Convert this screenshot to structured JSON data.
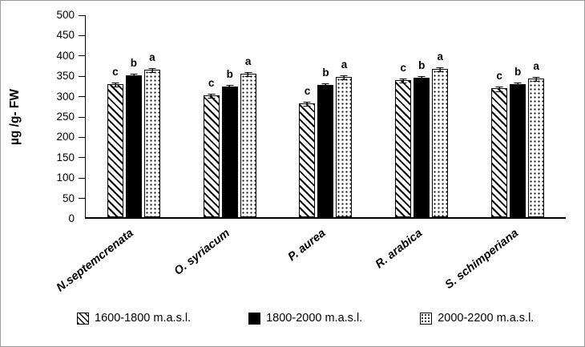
{
  "chart_data": {
    "type": "bar",
    "title": "",
    "ylabel": "µg /g- FW",
    "xlabel": "",
    "ylim": [
      0,
      500
    ],
    "ytick_step": 50,
    "grid": false,
    "legend_position": "bottom",
    "categories": [
      "N.septemcrenata",
      "O. syriacum",
      "P. aurea",
      "R. arabica",
      "S. schimperiana"
    ],
    "series": [
      {
        "name": "1600-1800 m.a.s.l.",
        "pattern": "hatch",
        "values": [
          327,
          300,
          280,
          336,
          316
        ],
        "errors": [
          6,
          6,
          6,
          6,
          6
        ],
        "letters": [
          "c",
          "c",
          "c",
          "c",
          "c"
        ]
      },
      {
        "name": "1800-2000 m.a.s.l.",
        "pattern": "solid",
        "values": [
          349,
          320,
          325,
          342,
          326
        ],
        "errors": [
          6,
          6,
          6,
          6,
          6
        ],
        "letters": [
          "b",
          "b",
          "b",
          "b",
          "b"
        ]
      },
      {
        "name": "2000-2200 m.a.s.l.",
        "pattern": "dots",
        "values": [
          362,
          352,
          345,
          365,
          341
        ],
        "errors": [
          6,
          6,
          6,
          6,
          6
        ],
        "letters": [
          "a",
          "a",
          "a",
          "a",
          "a"
        ]
      }
    ]
  },
  "colors": {
    "bar_fill": "#000000",
    "background": "#ffffff",
    "frame_border": "#9a9a9a"
  }
}
